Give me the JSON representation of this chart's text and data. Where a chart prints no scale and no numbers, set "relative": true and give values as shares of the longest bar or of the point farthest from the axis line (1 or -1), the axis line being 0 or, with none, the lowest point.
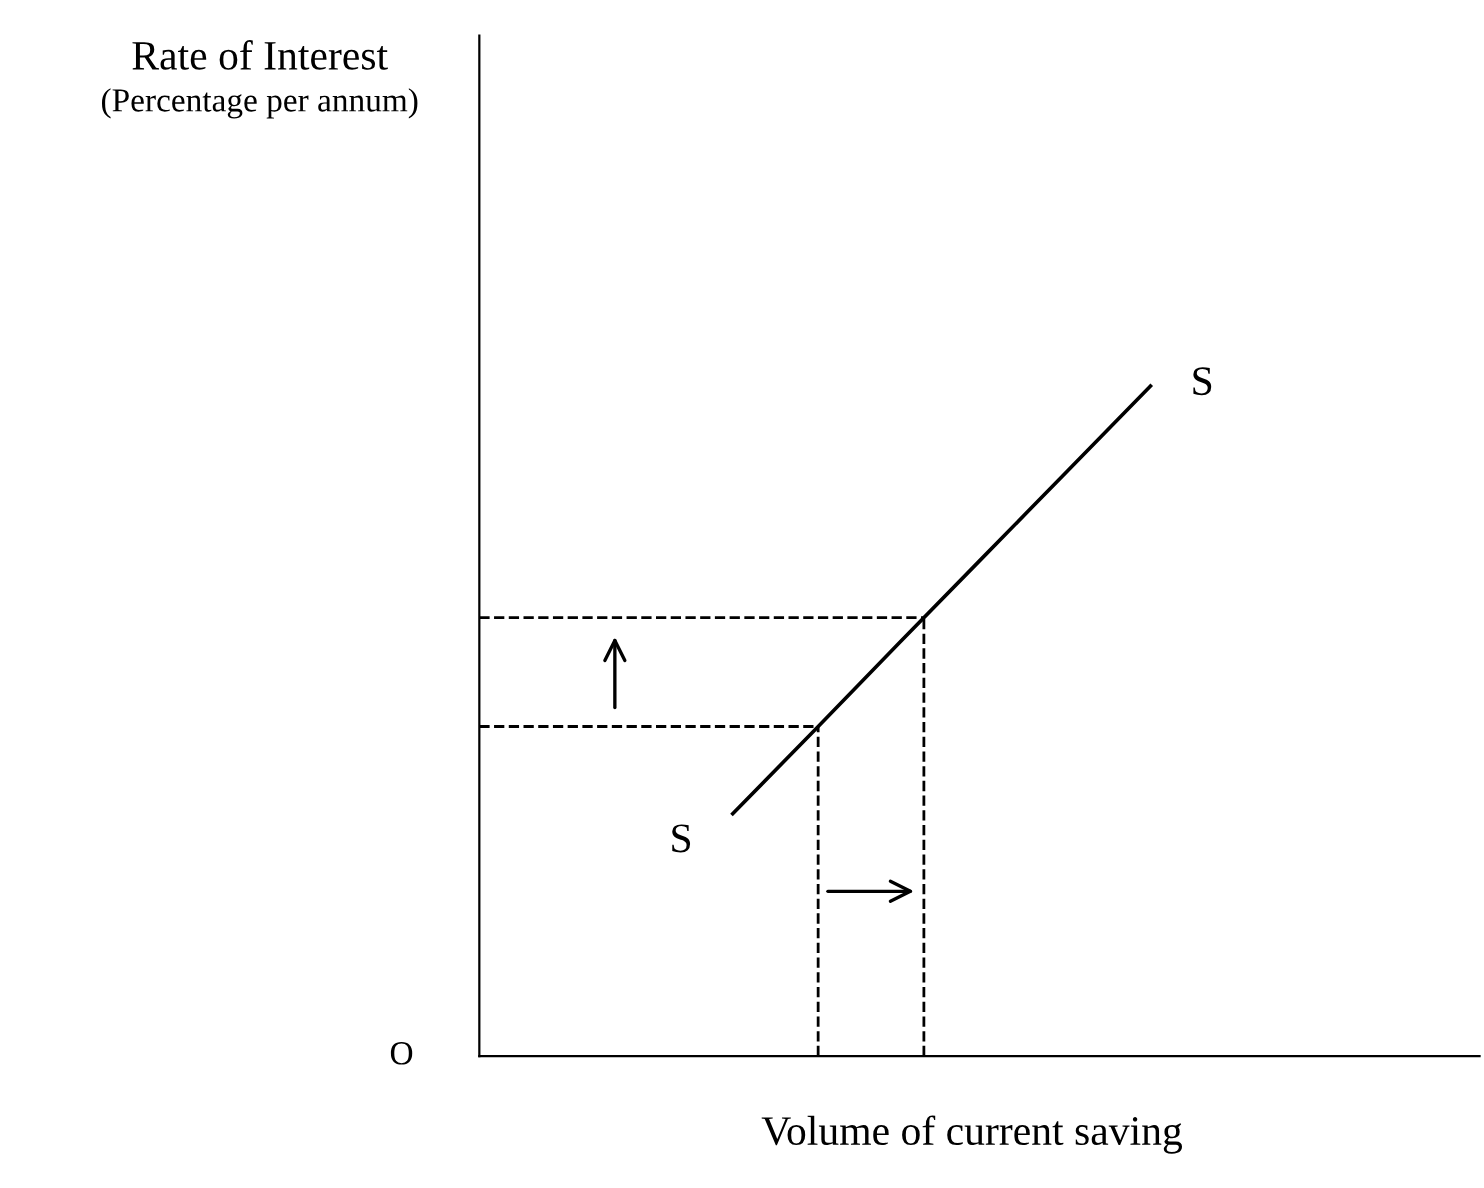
{
  "chart_data": {
    "type": "line",
    "relative": true,
    "xlabel": "Volume of current saving",
    "categories": [
      null,
      null,
      null,
      null,
      null,
      null,
      null,
      null,
      null,
      null,
      null,
      null
    ],
    "series": [
      {
        "name": "S",
        "color": "#000000",
        "values": [
          null,
          null,
          null,
          0.359,
          0.487,
          0.616,
          0.744,
          0.872,
          1,
          null,
          null,
          null
        ]
      }
    ],
    "ref_lines": [
      {
        "axis": "y",
        "value": 0.491,
        "line_style": "dashed",
        "color": "#000000"
      },
      {
        "axis": "y",
        "value": 0.653,
        "line_style": "dashed",
        "color": "#000000"
      }
    ],
    "annotations": [
      "Rate of Interest",
      "(Percentage per annum)",
      "O"
    ],
    "marker": "none",
    "line_style": "solid"
  }
}
